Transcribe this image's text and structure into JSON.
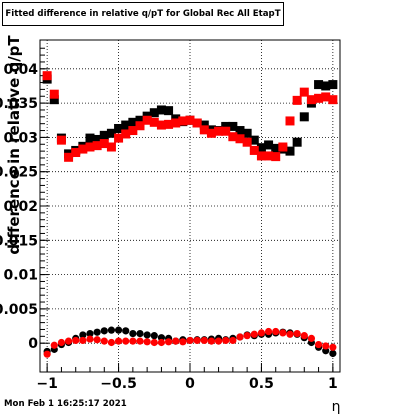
{
  "title": "Fitted difference in relative q/pT for Global Rec All EtapT",
  "timestamp": "Mon Feb  1 16:25:17 2021",
  "chart_data": {
    "type": "scatter",
    "xlabel": "η",
    "ylabel": "difference in relative q/pT",
    "xlim": [
      -1.05,
      1.05
    ],
    "ylim": [
      -0.0042,
      0.0442
    ],
    "x_ticks": [
      -1,
      -0.5,
      0,
      0.5,
      1
    ],
    "x_tick_labels": [
      "−1",
      "−0.5",
      "0",
      "0.5",
      "1"
    ],
    "y_ticks": [
      0,
      0.005,
      0.01,
      0.015,
      0.02,
      0.025,
      0.03,
      0.035,
      0.04
    ],
    "y_tick_labels": [
      "0",
      "0.005",
      "0.01",
      "0.015",
      "0.02",
      "0.025",
      "0.03",
      "0.035",
      "0.04"
    ],
    "grid": true,
    "x": [
      -1.0,
      -0.95,
      -0.9,
      -0.85,
      -0.8,
      -0.75,
      -0.7,
      -0.65,
      -0.6,
      -0.55,
      -0.5,
      -0.45,
      -0.4,
      -0.35,
      -0.3,
      -0.25,
      -0.2,
      -0.15,
      -0.1,
      -0.05,
      0.0,
      0.05,
      0.1,
      0.15,
      0.2,
      0.25,
      0.3,
      0.35,
      0.4,
      0.45,
      0.5,
      0.55,
      0.6,
      0.65,
      0.7,
      0.75,
      0.8,
      0.85,
      0.9,
      0.95,
      1.0
    ],
    "series": [
      {
        "color": "#000000",
        "values": [
          0.0385,
          0.0355,
          0.0299,
          0.0276,
          0.0281,
          0.0287,
          0.0299,
          0.0297,
          0.0303,
          0.0306,
          0.0313,
          0.0318,
          0.0322,
          0.0325,
          0.0331,
          0.0336,
          0.034,
          0.0339,
          0.0327,
          0.0323,
          0.0325,
          0.0321,
          0.0318,
          0.0311,
          0.031,
          0.0316,
          0.0316,
          0.031,
          0.0306,
          0.0296,
          0.0285,
          0.0289,
          0.0284,
          0.0283,
          0.028,
          0.0293,
          0.033,
          0.035,
          0.0377,
          0.0375,
          0.0377
        ]
      },
      {
        "color": "#ff0000",
        "values": [
          0.039,
          0.0363,
          0.0296,
          0.0271,
          0.0278,
          0.0283,
          0.0286,
          0.0288,
          0.0291,
          0.0286,
          0.0299,
          0.0305,
          0.031,
          0.0317,
          0.0325,
          0.0322,
          0.0318,
          0.0319,
          0.0321,
          0.0324,
          0.0325,
          0.0321,
          0.0311,
          0.0306,
          0.0309,
          0.0309,
          0.0301,
          0.0298,
          0.0293,
          0.0281,
          0.0273,
          0.0273,
          0.0272,
          0.0286,
          0.0324,
          0.0354,
          0.0366,
          0.0355,
          0.0357,
          0.0359,
          0.0355
        ]
      },
      {
        "color": "#000000",
        "values": [
          -0.0012,
          -0.0009,
          -0.0002,
          0.0001,
          0.0007,
          0.0012,
          0.0014,
          0.0016,
          0.0018,
          0.0019,
          0.0019,
          0.0018,
          0.0014,
          0.0014,
          0.0012,
          0.0011,
          0.0008,
          0.0007,
          0.0003,
          0.0005,
          0.0004,
          0.0005,
          0.0005,
          0.0006,
          0.0007,
          0.0005,
          0.0007,
          0.0009,
          0.0012,
          0.0011,
          0.0013,
          0.0013,
          0.0015,
          0.0016,
          0.0015,
          0.0013,
          0.0008,
          0.0001,
          -0.0006,
          -0.0011,
          -0.0015
        ]
      },
      {
        "color": "#ff0000",
        "values": [
          -0.0016,
          -0.0003,
          0.0001,
          0.0003,
          0.0004,
          0.0004,
          0.0006,
          0.0005,
          0.0003,
          0.0001,
          0.0003,
          0.0003,
          0.0003,
          0.0003,
          0.0002,
          0.0001,
          0.0001,
          0.0002,
          0.0003,
          0.0002,
          0.0004,
          0.0004,
          0.0004,
          0.0003,
          0.0003,
          0.0004,
          0.0004,
          0.0009,
          0.0011,
          0.0013,
          0.0015,
          0.0017,
          0.0017,
          0.0015,
          0.0013,
          0.0014,
          0.0011,
          0.0007,
          -0.0002,
          -0.0004,
          -0.0006
        ]
      }
    ]
  }
}
